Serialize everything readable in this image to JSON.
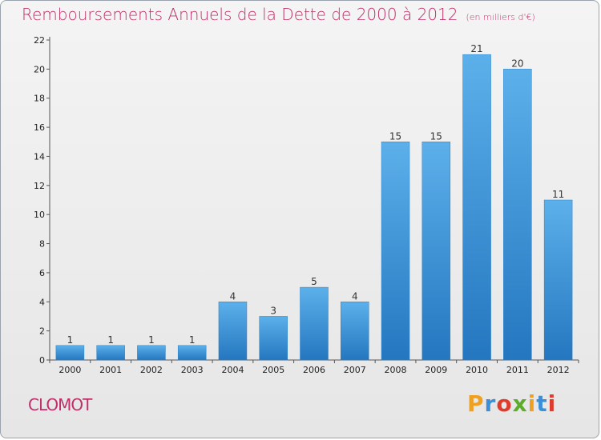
{
  "header": {
    "title": "Remboursements Annuels de la Dette de 2000 à 2012",
    "unit": "(en milliers d'€)"
  },
  "footer": {
    "commune": "CLOMOT",
    "logo": {
      "letters": [
        "P",
        "r",
        "o",
        "x",
        "i",
        "t",
        "i"
      ],
      "colors": [
        "#f0a020",
        "#3a8fd8",
        "#e03c2c",
        "#5cae2a",
        "#f0a020",
        "#3a8fd8",
        "#e03c2c"
      ]
    }
  },
  "colors": {
    "bar": "#3d97db",
    "bar_light": "#5cb0ea",
    "bar_dark": "#2477bf",
    "title": "#c0306a"
  },
  "chart_data": {
    "type": "bar",
    "title": "Remboursements Annuels de la Dette de 2000 à 2012",
    "subtitle": "(en milliers d'€)",
    "categories": [
      "2000",
      "2001",
      "2002",
      "2003",
      "2004",
      "2005",
      "2006",
      "2007",
      "2008",
      "2009",
      "2010",
      "2011",
      "2012"
    ],
    "values": [
      1,
      1,
      1,
      1,
      4,
      3,
      5,
      4,
      15,
      15,
      21,
      20,
      11
    ],
    "ylim": [
      0,
      22
    ],
    "yticks": [
      0,
      2,
      4,
      6,
      8,
      10,
      12,
      14,
      16,
      18,
      20,
      22
    ],
    "grid": false,
    "legend": "none"
  }
}
